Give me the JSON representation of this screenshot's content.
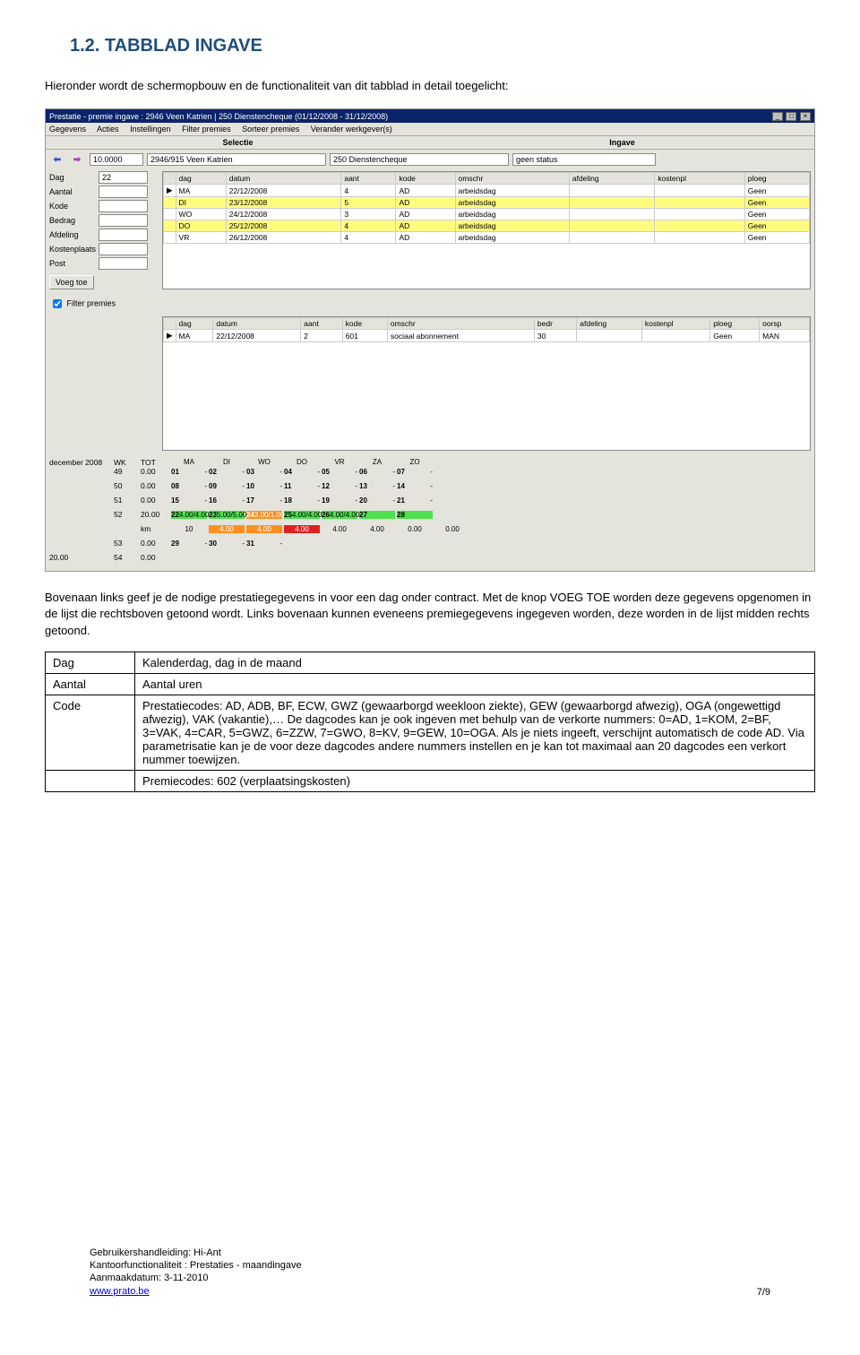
{
  "heading": "1.2.  TABBLAD INGAVE",
  "intro": "Hieronder wordt de schermopbouw en de functionaliteit van dit tabblad in detail toegelicht:",
  "screenshot": {
    "title": "Prestatie - premie ingave : 2946 Veen Katrien | 250 Dienstencheque (01/12/2008 - 31/12/2008)",
    "menu": [
      "Gegevens",
      "Acties",
      "Instellingen",
      "Filter premies",
      "Sorteer premies",
      "Verander werkgever(s)"
    ],
    "sections": {
      "left": "Selectie",
      "right": "Ingave"
    },
    "toprow": {
      "field1": "10.0000",
      "field2": "2946/915 Veen Katrien",
      "field3": "250 Dienstencheque",
      "field4": "geen status"
    },
    "form_labels": [
      "Dag",
      "Aantal",
      "Kode",
      "Bedrag",
      "Afdeling",
      "Kostenplaats",
      "Post"
    ],
    "form_dag_value": "22",
    "voegtoe": "Voeg toe",
    "grid1": {
      "headers": [
        "",
        "dag",
        "datum",
        "aant",
        "kode",
        "omschr",
        "afdeling",
        "kostenpl",
        "ploeg"
      ],
      "rows": [
        {
          "ind": "▶",
          "dag": "MA",
          "datum": "22/12/2008",
          "aant": "4",
          "kode": "AD",
          "omschr": "arbeidsdag",
          "afdeling": "",
          "kostenpl": "",
          "ploeg": "Geen"
        },
        {
          "ind": "",
          "dag": "DI",
          "datum": "23/12/2008",
          "aant": "5",
          "kode": "AD",
          "omschr": "arbeidsdag",
          "afdeling": "",
          "kostenpl": "",
          "ploeg": "Geen",
          "hl": true
        },
        {
          "ind": "",
          "dag": "WO",
          "datum": "24/12/2008",
          "aant": "3",
          "kode": "AD",
          "omschr": "arbeidsdag",
          "afdeling": "",
          "kostenpl": "",
          "ploeg": "Geen"
        },
        {
          "ind": "",
          "dag": "DO",
          "datum": "25/12/2008",
          "aant": "4",
          "kode": "AD",
          "omschr": "arbeidsdag",
          "afdeling": "",
          "kostenpl": "",
          "ploeg": "Geen",
          "hl": true
        },
        {
          "ind": "",
          "dag": "VR",
          "datum": "26/12/2008",
          "aant": "4",
          "kode": "AD",
          "omschr": "arbeidsdag",
          "afdeling": "",
          "kostenpl": "",
          "ploeg": "Geen"
        }
      ]
    },
    "filter_label": "Filter premies",
    "grid2": {
      "headers": [
        "",
        "dag",
        "datum",
        "aant",
        "kode",
        "omschr",
        "bedr",
        "afdeling",
        "kostenpl",
        "ploeg",
        "oorsp"
      ],
      "row": {
        "ind": "▶",
        "dag": "MA",
        "datum": "22/12/2008",
        "aant": "2",
        "kode": "601",
        "omschr": "sociaal abonnement",
        "bedr": "30",
        "afdeling": "",
        "kostenpl": "",
        "ploeg": "Geen",
        "oorsp": "MAN"
      }
    },
    "calendar": {
      "month": "december 2008",
      "day_headers": [
        "WK",
        "TOT",
        "MA",
        "DI",
        "WO",
        "DO",
        "VR",
        "ZA",
        "ZO"
      ],
      "weeks": [
        {
          "wk": "49",
          "tot": "0.00",
          "days": [
            {
              "n": "01",
              "v": "-"
            },
            {
              "n": "02",
              "v": "-"
            },
            {
              "n": "03",
              "v": "-"
            },
            {
              "n": "04",
              "v": "-"
            },
            {
              "n": "05",
              "v": "-"
            },
            {
              "n": "06",
              "v": "-"
            },
            {
              "n": "07",
              "v": "-"
            }
          ]
        },
        {
          "wk": "50",
          "tot": "0.00",
          "days": [
            {
              "n": "08",
              "v": "-"
            },
            {
              "n": "09",
              "v": "-"
            },
            {
              "n": "10",
              "v": "-"
            },
            {
              "n": "11",
              "v": "-"
            },
            {
              "n": "12",
              "v": "-"
            },
            {
              "n": "13",
              "v": "-"
            },
            {
              "n": "14",
              "v": "-"
            }
          ]
        },
        {
          "wk": "51",
          "tot": "0.00",
          "days": [
            {
              "n": "15",
              "v": "-"
            },
            {
              "n": "16",
              "v": "-"
            },
            {
              "n": "17",
              "v": "-"
            },
            {
              "n": "18",
              "v": "-"
            },
            {
              "n": "19",
              "v": "-"
            },
            {
              "n": "20",
              "v": "-"
            },
            {
              "n": "21",
              "v": "-"
            }
          ]
        },
        {
          "wk": "52",
          "tot": "20.00",
          "days": [
            {
              "n": "22",
              "v": "4.00/4.00",
              "c": "green"
            },
            {
              "n": "23",
              "v": "5.00/5.00",
              "c": "green"
            },
            {
              "n": "24",
              "v": "3.00/1.00",
              "c": "orange"
            },
            {
              "n": "25",
              "v": "4.00/4.00",
              "c": "green"
            },
            {
              "n": "26",
              "v": "4.00/4.00",
              "c": "green"
            },
            {
              "n": "27",
              "v": "",
              "c": "green"
            },
            {
              "n": "28",
              "v": "",
              "c": "green"
            }
          ],
          "km": [
            "10",
            "4.00",
            "4.00",
            "4.00",
            "4.00",
            "4.00",
            "0.00",
            "0.00"
          ]
        },
        {
          "wk": "53",
          "tot": "0.00",
          "days": [
            {
              "n": "29",
              "v": "-"
            },
            {
              "n": "30",
              "v": "-"
            },
            {
              "n": "31",
              "v": "-"
            }
          ]
        }
      ],
      "bottom_left": "20.00",
      "bottom_wk": "54",
      "bottom_tot": "0.00"
    }
  },
  "para1": "Bovenaan links geef je de nodige prestatiegegevens in voor een dag onder contract. Met de knop VOEG TOE worden deze gegevens opgenomen in de lijst die rechtsboven getoond wordt. Links bovenaan kunnen eveneens premiegegevens ingegeven worden, deze worden in de lijst midden rechts getoond.",
  "def_table": {
    "rows": [
      {
        "label": "Dag",
        "desc": "Kalenderdag, dag in de maand"
      },
      {
        "label": "Aantal",
        "desc": "Aantal uren"
      },
      {
        "label": "Code",
        "desc": "Prestatiecodes: AD, ADB, BF, ECW, GWZ (gewaarborgd weekloon ziekte), GEW (gewaarborgd afwezig), OGA (ongewettigd afwezig), VAK (vakantie),… De dagcodes kan je ook ingeven met behulp van de verkorte nummers: 0=AD, 1=KOM, 2=BF, 3=VAK, 4=CAR, 5=GWZ, 6=ZZW, 7=GWO, 8=KV, 9=GEW, 10=OGA. Als je niets ingeeft, verschijnt automatisch de code AD. Via parametrisatie kan je de voor deze dagcodes andere nummers instellen en je kan tot maximaal aan 20 dagcodes een verkort nummer toewijzen."
      },
      {
        "label": "",
        "desc": "Premiecodes: 602 (verplaatsingskosten)"
      }
    ]
  },
  "footer": {
    "line1": "Gebruikershandleiding: Hi-Ant",
    "line2": "Kantoorfunctionaliteit : Prestaties - maandingave",
    "line3": "Aanmaakdatum: 3-11-2010",
    "link": "www.prato.be",
    "page": "7/9"
  }
}
